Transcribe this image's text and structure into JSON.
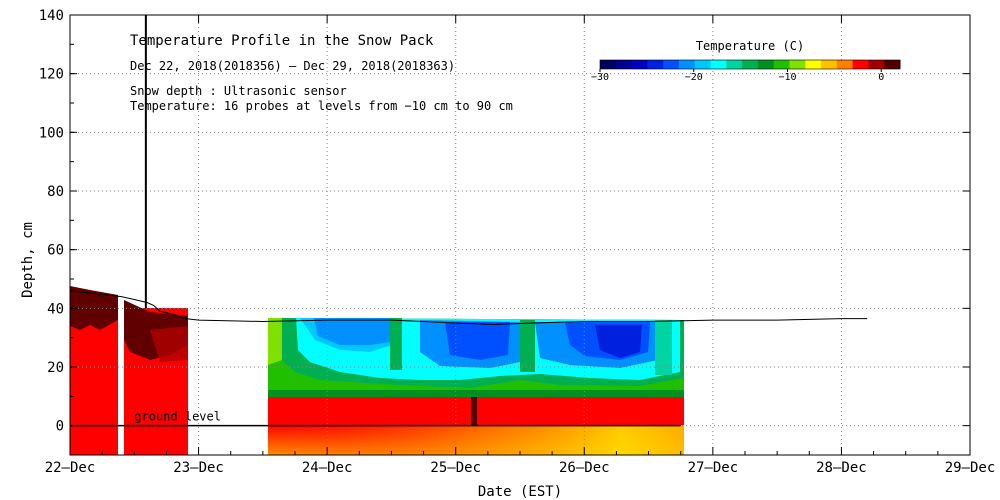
{
  "chart_data": {
    "type": "heatmap",
    "title": "Temperature Profile in the Snow Pack",
    "subtitle": "Dec 22, 2018(2018356) — Dec 29, 2018(2018363)",
    "notes": [
      "Snow depth : Ultrasonic sensor",
      "Temperature: 16 probes at levels from −10 cm to 90 cm"
    ],
    "xlabel": "Date (EST)",
    "ylabel": "Depth, cm",
    "ground_label": "ground level",
    "x_categories": [
      "22–Dec",
      "23–Dec",
      "24–Dec",
      "25–Dec",
      "26–Dec",
      "27–Dec",
      "28–Dec",
      "29–Dec"
    ],
    "xlim": [
      0,
      7
    ],
    "ylim": [
      -10,
      140
    ],
    "y_ticks": [
      0,
      20,
      40,
      60,
      80,
      100,
      120,
      140
    ],
    "colorbar": {
      "title": "Temperature (C)",
      "range": [
        -30,
        2
      ],
      "ticks": [
        "−30",
        "−20",
        "−10",
        "0"
      ],
      "tick_values": [
        -30,
        -20,
        -10,
        0
      ],
      "colors": [
        "#000060",
        "#000090",
        "#0000c0",
        "#0020e0",
        "#0050ff",
        "#0090ff",
        "#00c8ff",
        "#00ffff",
        "#00d4a0",
        "#00b050",
        "#009020",
        "#20c000",
        "#80e000",
        "#ffff00",
        "#ffc000",
        "#ff8000",
        "#ff0000",
        "#a00000",
        "#500000"
      ]
    },
    "snow_depth": {
      "x": [
        0.0,
        0.2,
        0.4,
        0.5,
        0.6,
        0.65,
        0.7,
        0.8,
        0.9,
        1.0,
        1.5,
        2.0,
        2.5,
        3.0,
        3.3,
        3.6,
        4.0,
        4.5,
        5.0,
        5.5,
        6.0,
        6.2
      ],
      "y": [
        46,
        45,
        44,
        43,
        42,
        41,
        39,
        38,
        36.5,
        36,
        35.5,
        36,
        36,
        35,
        34.5,
        35,
        35.5,
        35.5,
        36,
        36,
        36.5,
        36.5
      ],
      "spike": {
        "x": 0.59,
        "y_top": 140,
        "y_base": 40
      }
    },
    "gaps": [
      [
        0.37,
        0.42
      ],
      [
        0.9,
        1.55
      ],
      [
        1.97,
        1.98
      ],
      [
        4.75,
        7.0
      ]
    ]
  }
}
